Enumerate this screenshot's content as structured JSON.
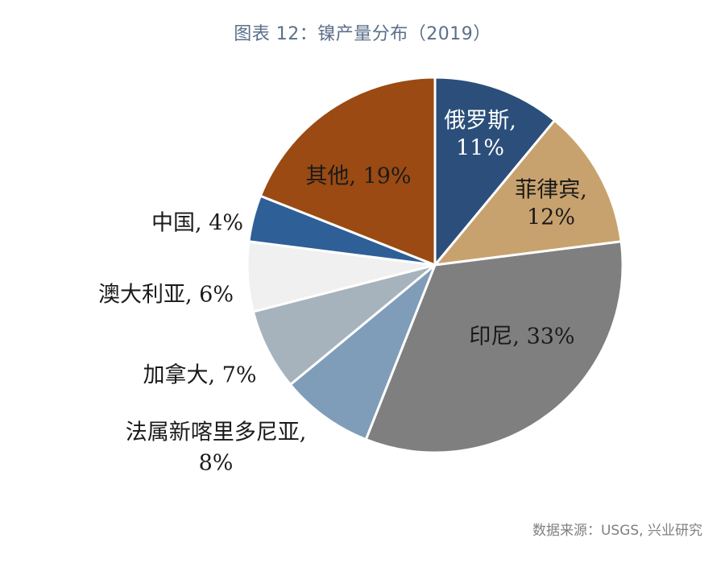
{
  "title": "图表 12：镍产量分布（2019）",
  "source": "数据来源：USGS, 兴业研究",
  "chart_data": {
    "type": "pie",
    "title": "图表 12：镍产量分布（2019）",
    "start_angle_deg": 0,
    "direction": "clockwise",
    "slices": [
      {
        "label": "俄罗斯",
        "value": 11,
        "display": [
          "俄罗斯,",
          "11%"
        ],
        "color": "#2b4f7a",
        "text_color": "#ffffff"
      },
      {
        "label": "菲律宾",
        "value": 12,
        "display": [
          "菲律宾,",
          "12%"
        ],
        "color": "#c8a26e",
        "text_color": "#1a1a1a"
      },
      {
        "label": "印尼",
        "value": 33,
        "display": [
          "印尼, 33%"
        ],
        "color": "#7f7f7f",
        "text_color": "#1a1a1a"
      },
      {
        "label": "法属新喀里多尼亚",
        "value": 8,
        "display": [
          "法属新喀里多尼亚,",
          "8%"
        ],
        "color": "#7f9db9",
        "text_color": "#1a1a1a"
      },
      {
        "label": "加拿大",
        "value": 7,
        "display": [
          "加拿大, 7%"
        ],
        "color": "#a6b3bd",
        "text_color": "#1a1a1a"
      },
      {
        "label": "澳大利亚",
        "value": 6,
        "display": [
          "澳大利亚, 6%"
        ],
        "color": "#f0f0f0",
        "text_color": "#1a1a1a"
      },
      {
        "label": "中国",
        "value": 4,
        "display": [
          "中国, 4%"
        ],
        "color": "#2e5f97",
        "text_color": "#1a1a1a"
      },
      {
        "label": "其他",
        "value": 19,
        "display": [
          "其他, 19%"
        ],
        "color": "#9a4a12",
        "text_color": "#1a1a1a"
      }
    ]
  }
}
